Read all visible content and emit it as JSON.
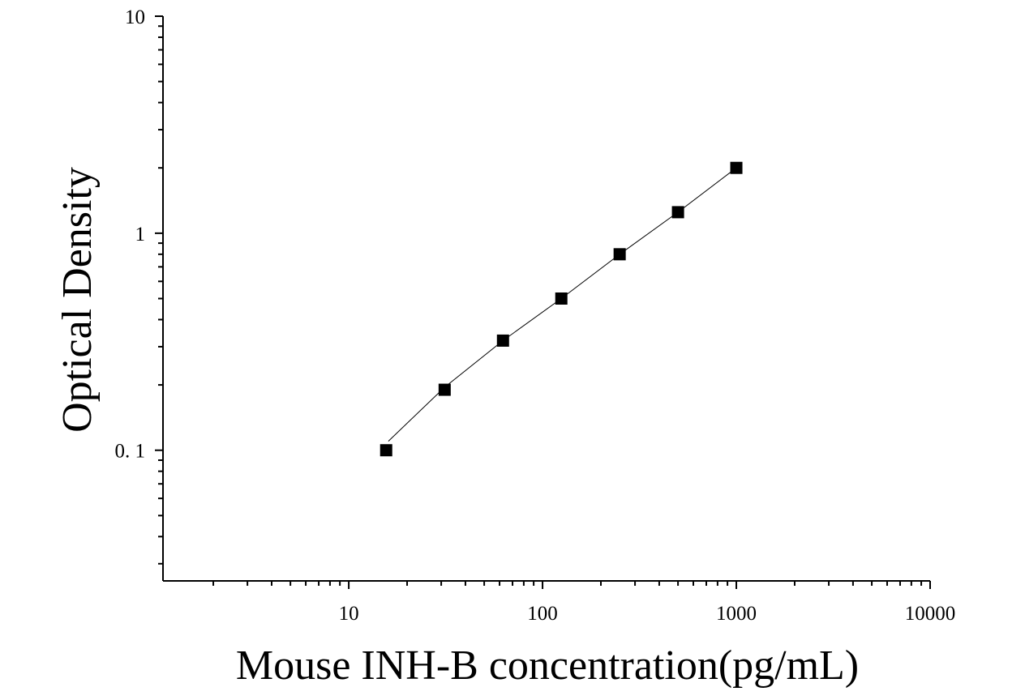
{
  "chart_data": {
    "type": "scatter",
    "title": "",
    "xlabel": "Mouse INH-B concentration(pg/mL)",
    "ylabel": "Optical Density",
    "x_scale": "log",
    "y_scale": "log",
    "xlim": [
      1.1,
      10000
    ],
    "ylim": [
      0.025,
      10
    ],
    "x_ticks": [
      {
        "value": 10,
        "label": "10"
      },
      {
        "value": 100,
        "label": "100"
      },
      {
        "value": 1000,
        "label": "1000"
      },
      {
        "value": 10000,
        "label": "10000"
      }
    ],
    "y_ticks": [
      {
        "value": 10,
        "label": "10"
      },
      {
        "value": 1,
        "label": "1"
      },
      {
        "value": 0.1,
        "label": "0. 1"
      }
    ],
    "grid": false,
    "legend": "none",
    "marker_color": "#000000",
    "series": [
      {
        "x": [
          15.6,
          31.25,
          62.5,
          125,
          250,
          500,
          1000
        ],
        "y": [
          0.1,
          0.19,
          0.32,
          0.5,
          0.8,
          1.25,
          2.0
        ]
      }
    ],
    "fit_curve": {
      "x": [
        16,
        31.25,
        62.5,
        125,
        250,
        500,
        1000
      ],
      "y": [
        0.11,
        0.195,
        0.32,
        0.5,
        0.8,
        1.25,
        2.0
      ]
    }
  }
}
